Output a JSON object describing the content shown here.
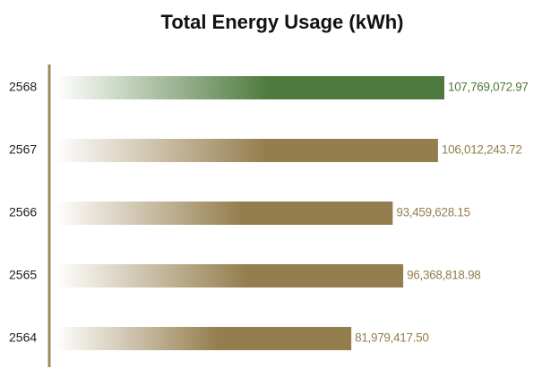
{
  "chart_data": {
    "type": "bar",
    "orientation": "horizontal",
    "title": "Total Energy Usage (kWh)",
    "categories": [
      "2568",
      "2567",
      "2566",
      "2565",
      "2564"
    ],
    "values": [
      107769072.97,
      106012243.72,
      93459628.15,
      96368818.98,
      81979417.5
    ],
    "value_labels": [
      "107,769,072.97",
      "106,012,243.72",
      "93,459,628.15",
      "96,368,818.98",
      "81,979,417.50"
    ],
    "colors": [
      "#4e7a3d",
      "#957e4e",
      "#957e4e",
      "#957e4e",
      "#957e4e"
    ],
    "axis_color": "#a08c5e"
  }
}
